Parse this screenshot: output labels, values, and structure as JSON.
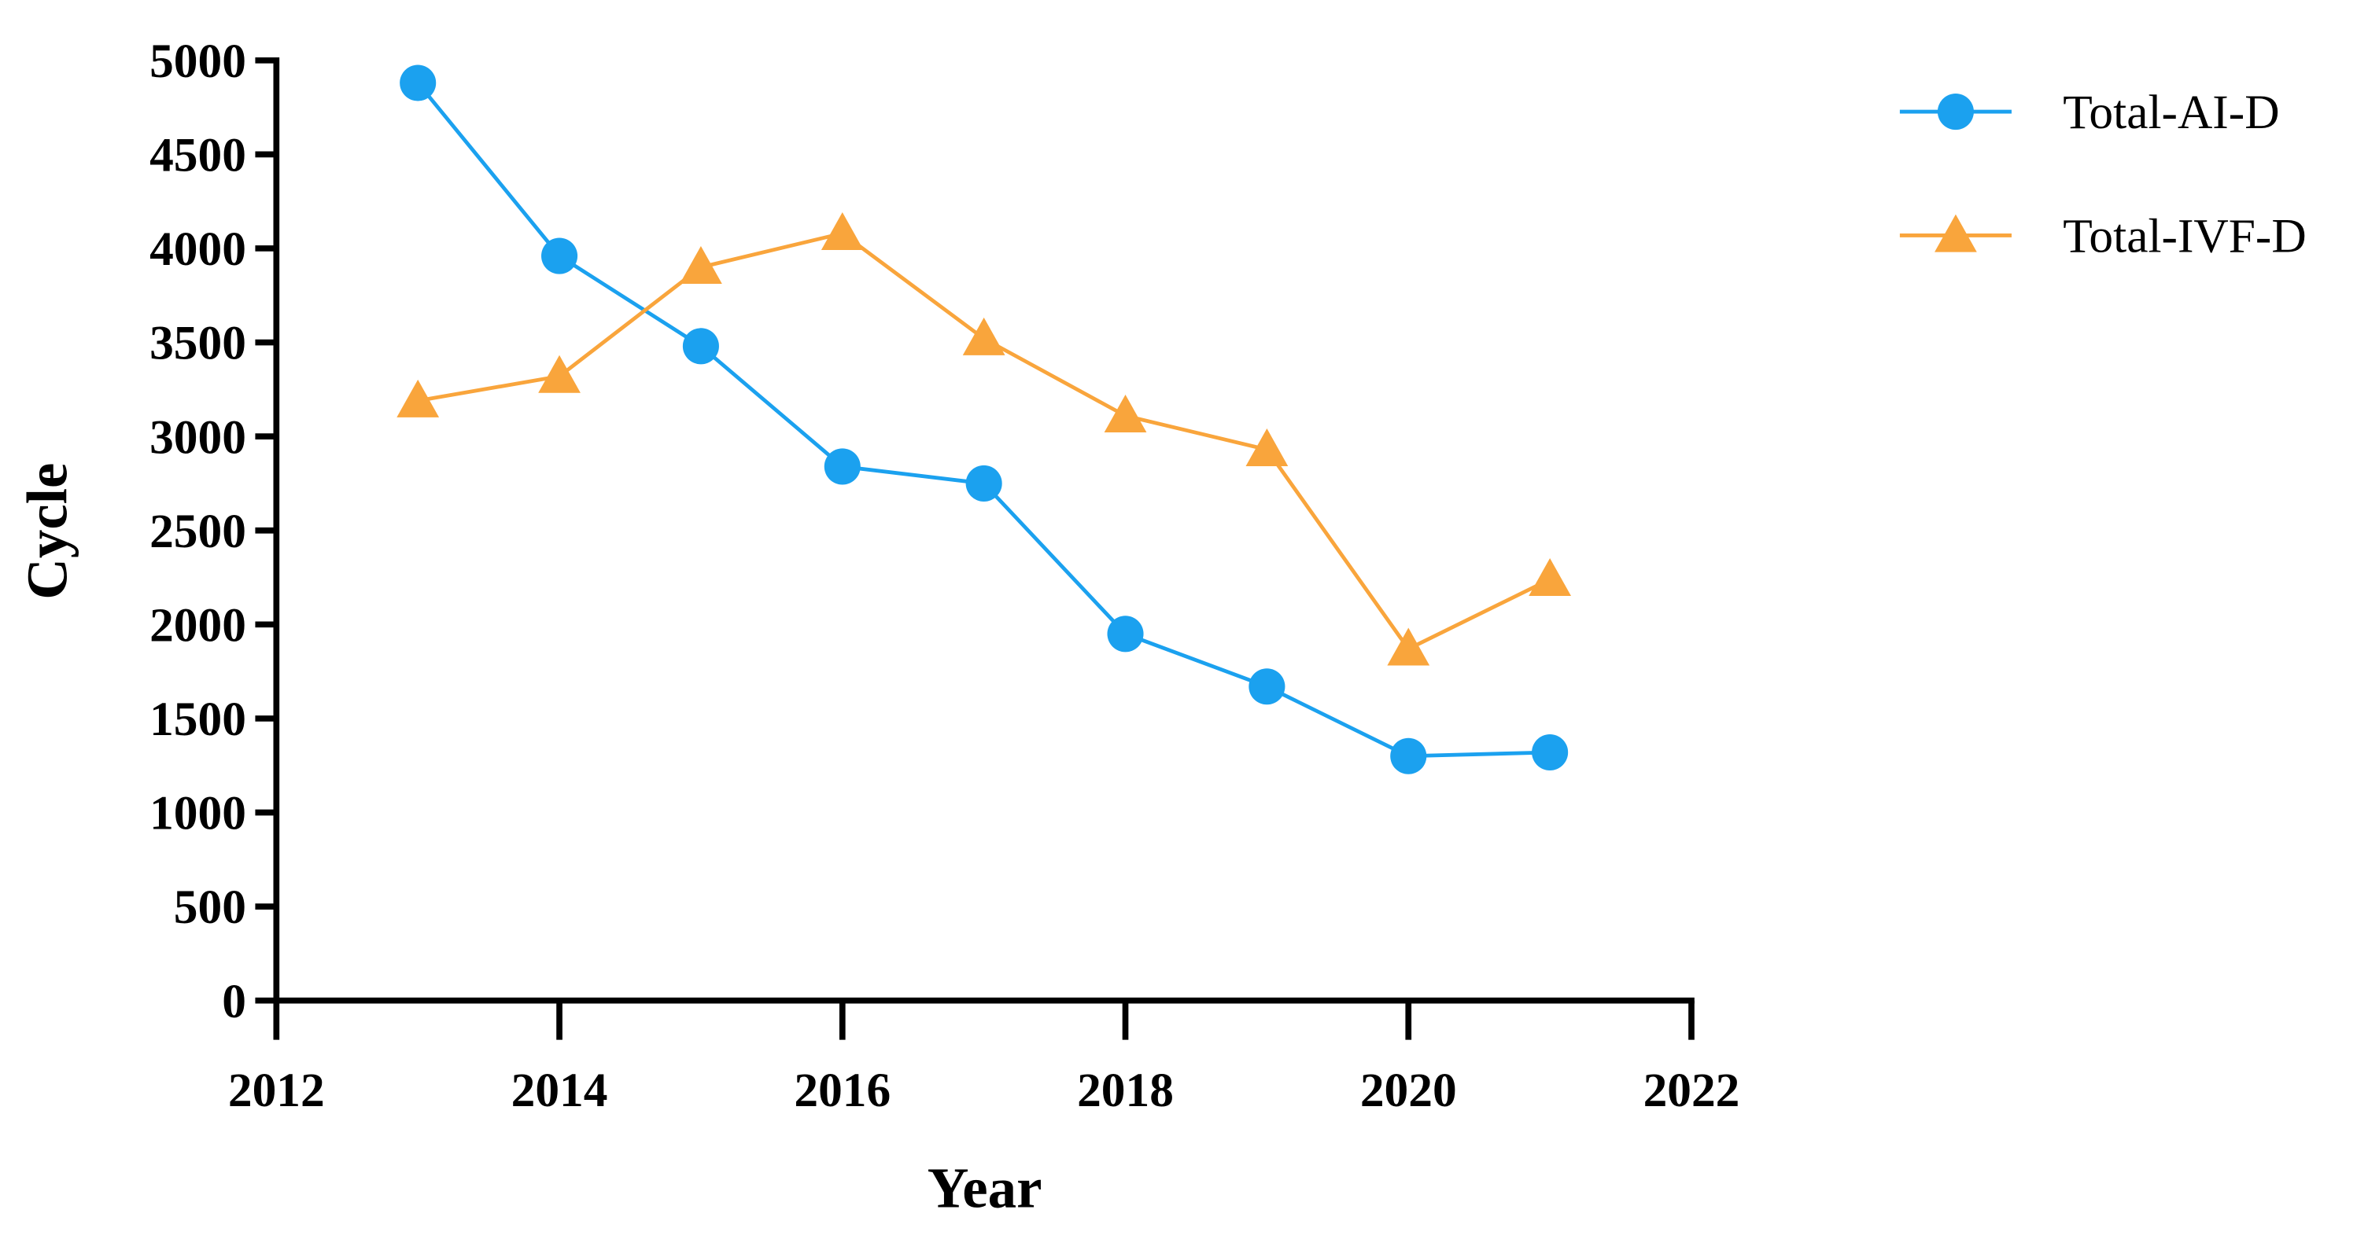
{
  "chart_data": {
    "type": "line",
    "x_label": "Year",
    "y_label": "Cycle",
    "x": [
      2013,
      2014,
      2015,
      2016,
      2017,
      2018,
      2019,
      2020,
      2021
    ],
    "series": [
      {
        "name": "Total-AI-D",
        "color": "#1ba1ef",
        "marker": "circle",
        "values": [
          4880,
          3960,
          3480,
          2840,
          2750,
          1950,
          1670,
          1300,
          1320
        ]
      },
      {
        "name": "Total-IVF-D",
        "color": "#f9a53c",
        "marker": "triangle",
        "values": [
          3190,
          3320,
          3900,
          4080,
          3520,
          3110,
          2930,
          1870,
          2240
        ]
      }
    ],
    "xlim": [
      2012,
      2022
    ],
    "xticks": [
      2012,
      2014,
      2016,
      2018,
      2020,
      2022
    ],
    "ylim": [
      0,
      5000
    ],
    "yticks": [
      0,
      500,
      1000,
      1500,
      2000,
      2500,
      3000,
      3500,
      4000,
      4500,
      5000
    ],
    "grid": false,
    "legend": "right"
  }
}
